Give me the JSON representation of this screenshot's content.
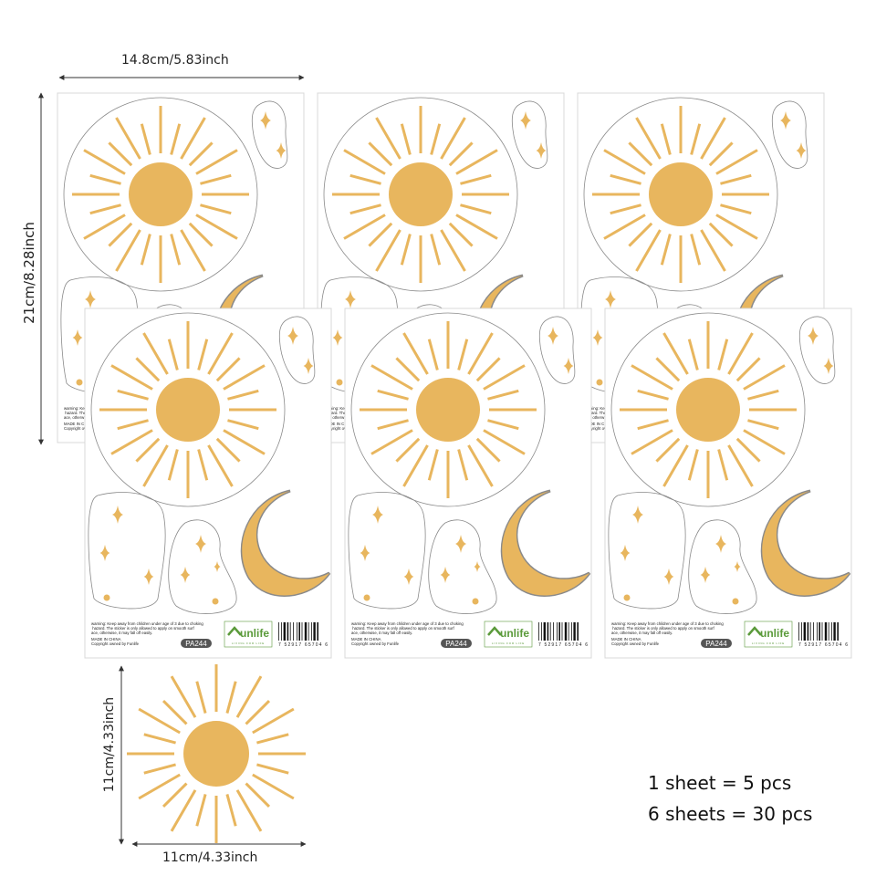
{
  "dimensions": {
    "sheet_width": "14.8cm/5.83inch",
    "sheet_height": "21cm/8.28inch",
    "sun_height": "11cm/4.33inch",
    "sun_width": "11cm/4.33inch"
  },
  "quantity": {
    "per_sheet": "1 sheet = 5 pcs",
    "total": "6 sheets = 30 pcs"
  },
  "sheet": {
    "warning": "warning: Keep away from children under age of 3 due to choking hazard. The sticker is only allowed to apply on smooth surface, otherwise, it may fall off easily.",
    "origin": "MADE IN CHINA",
    "copyright": "Copyright owned by Funlife",
    "product_code": "PA244",
    "logo_text": "unlife",
    "logo_tagline": "LIVING FOR LIFE",
    "barcode_number": "7 52917 65704 6"
  },
  "sheet_count": 6,
  "colors": {
    "sun": "#E8B65E",
    "outline": "#8a8a8a",
    "logo_green": "#5a9a3a",
    "badge": "#555555"
  }
}
